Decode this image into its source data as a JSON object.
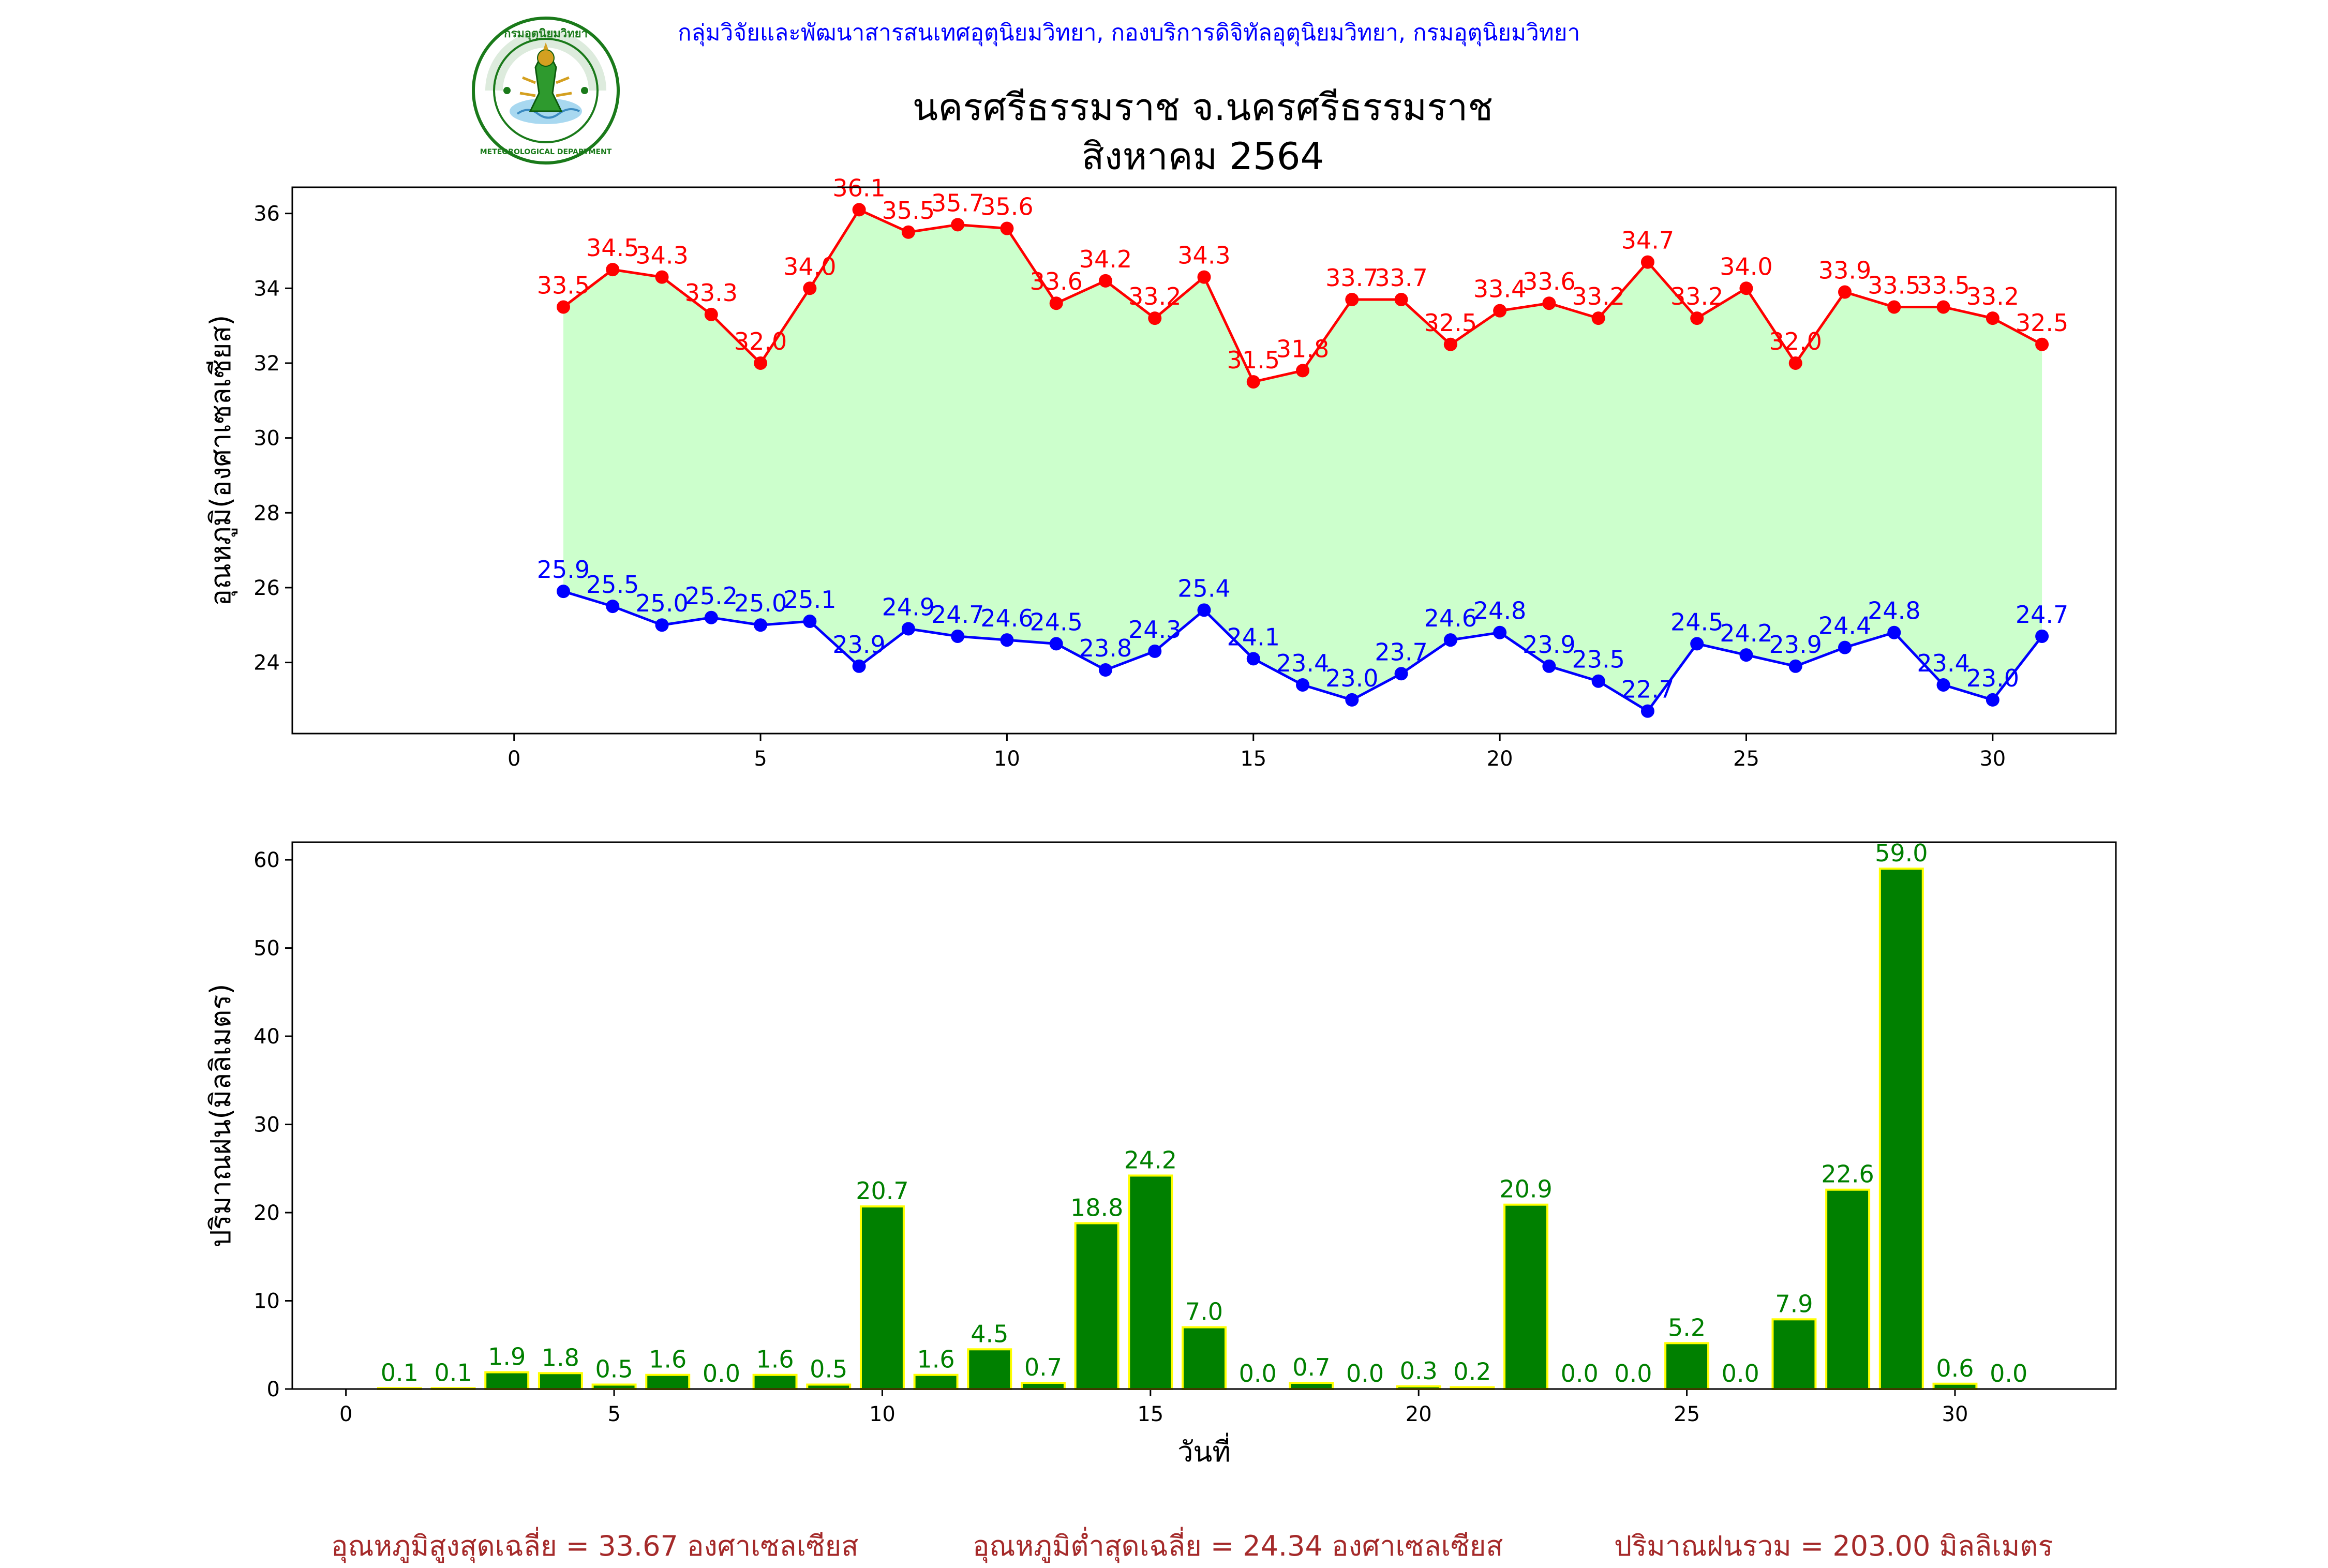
{
  "header": {
    "org_line": "กลุ่มวิจัยและพัฒนาสารสนเทศอุตุนิยมวิทยา, กองบริการดิจิทัลอุตุนิยมวิทยา, กรมอุตุนิยมวิทยา",
    "logo_text_top": "กรมอุตุนิยมวิทยา",
    "logo_text_bottom": "METEOROLOGICAL DEPARTMENT"
  },
  "title": {
    "station": "นครศรีธรรมราช จ.นครศรีธรรมราช",
    "month": "สิงหาคม 2564"
  },
  "chart_data": [
    {
      "type": "line",
      "ylabel": "อุณหภูมิ(องศาเซลเซียส)",
      "xlabel": "",
      "xlim": [
        -4.5,
        32.5
      ],
      "ylim": [
        22.1,
        36.7
      ],
      "xticks": [
        0,
        5,
        10,
        15,
        20,
        25,
        30
      ],
      "yticks": [
        24,
        26,
        28,
        30,
        32,
        34,
        36
      ],
      "grid": false,
      "fill_between": "#ccffcc",
      "x": [
        1,
        2,
        3,
        4,
        5,
        6,
        7,
        8,
        9,
        10,
        11,
        12,
        13,
        14,
        15,
        16,
        17,
        18,
        19,
        20,
        21,
        22,
        23,
        24,
        25,
        26,
        27,
        28,
        29,
        30,
        31
      ],
      "series": [
        {
          "color": "#ff0000",
          "values": [
            33.5,
            34.5,
            34.3,
            33.3,
            32.0,
            34.0,
            36.1,
            35.5,
            35.7,
            35.6,
            33.6,
            34.2,
            33.2,
            34.3,
            31.5,
            31.8,
            33.7,
            33.7,
            32.5,
            33.4,
            33.6,
            33.2,
            34.7,
            33.2,
            34.0,
            32.0,
            33.9,
            33.5,
            33.5,
            33.2,
            32.5
          ],
          "labels": [
            "33.5",
            "34.5",
            "34.3",
            "33.3",
            "32.0",
            "34.0",
            "36.1",
            "35.5",
            "35.7",
            "35.6",
            "33.6",
            "34.2",
            "33.2",
            "34.3",
            "31.5",
            "31.8",
            "33.7",
            "33.7",
            "32.5",
            "33.4",
            "33.6",
            "33.2",
            "34.7",
            "33.2",
            "34.0",
            "32.0",
            "33.9",
            "33.5",
            "33.5",
            "33.2",
            "32.5"
          ]
        },
        {
          "color": "#0000ff",
          "values": [
            25.9,
            25.5,
            25.0,
            25.2,
            25.0,
            25.1,
            23.9,
            24.9,
            24.7,
            24.6,
            24.5,
            23.8,
            24.3,
            25.4,
            24.1,
            23.4,
            23.0,
            23.7,
            24.6,
            24.8,
            23.9,
            23.5,
            22.7,
            24.5,
            24.2,
            23.9,
            24.4,
            24.8,
            23.4,
            23.0,
            24.7
          ],
          "labels": [
            "25.9",
            "25.5",
            "25.0",
            "25.2",
            "25.0",
            "25.1",
            "23.9",
            "24.9",
            "24.7",
            "24.6",
            "24.5",
            "23.8",
            "24.3",
            "25.4",
            "24.1",
            "23.4",
            "23.0",
            "23.7",
            "24.6",
            "24.8",
            "23.9",
            "23.5",
            "22.7",
            "24.5",
            "24.2",
            "23.9",
            "24.4",
            "24.8",
            "23.4",
            "23.0",
            "24.7"
          ]
        }
      ]
    },
    {
      "type": "bar",
      "ylabel": "ปริมาณฝน(มิลลิเมตร)",
      "xlabel": "วันที่",
      "xlim": [
        -1,
        33
      ],
      "ylim": [
        0,
        62
      ],
      "xticks": [
        0,
        5,
        10,
        15,
        20,
        25,
        30
      ],
      "yticks": [
        0,
        10,
        20,
        30,
        40,
        50,
        60
      ],
      "grid": false,
      "bar_color": "#008000",
      "edge_color": "#ffff00",
      "label_color": "#008000",
      "x": [
        1,
        2,
        3,
        4,
        5,
        6,
        7,
        8,
        9,
        10,
        11,
        12,
        13,
        14,
        15,
        16,
        17,
        18,
        19,
        20,
        21,
        22,
        23,
        24,
        25,
        26,
        27,
        28,
        29,
        30,
        31
      ],
      "values": [
        0.1,
        0.1,
        1.9,
        1.8,
        0.5,
        1.6,
        0.0,
        1.6,
        0.5,
        20.7,
        1.6,
        4.5,
        0.7,
        18.8,
        24.2,
        7.0,
        0.0,
        0.7,
        0.0,
        0.3,
        0.2,
        20.9,
        0.0,
        0.0,
        5.2,
        0.0,
        7.9,
        22.6,
        59.0,
        0.6,
        0.0
      ],
      "labels": [
        "0.1",
        "0.1",
        "1.9",
        "1.8",
        "0.5",
        "1.6",
        "0.0",
        "1.6",
        "0.5",
        "20.7",
        "1.6",
        "4.5",
        "0.7",
        "18.8",
        "24.2",
        "7.0",
        "0.0",
        "0.7",
        "0.0",
        "0.3",
        "0.2",
        "20.9",
        "0.0",
        "0.0",
        "5.2",
        "0.0",
        "7.9",
        "22.6",
        "59.0",
        "0.6",
        "0.0"
      ]
    }
  ],
  "footer": {
    "avg_max": "อุณหภูมิสูงสุดเฉลี่ย = 33.67 องศาเซลเซียส",
    "avg_min": "อุณหภูมิต่ำสุดเฉลี่ย = 24.34 องศาเซลเซียส",
    "total_rain": "ปริมาณฝนรวม = 203.00 มิลลิเมตร"
  }
}
